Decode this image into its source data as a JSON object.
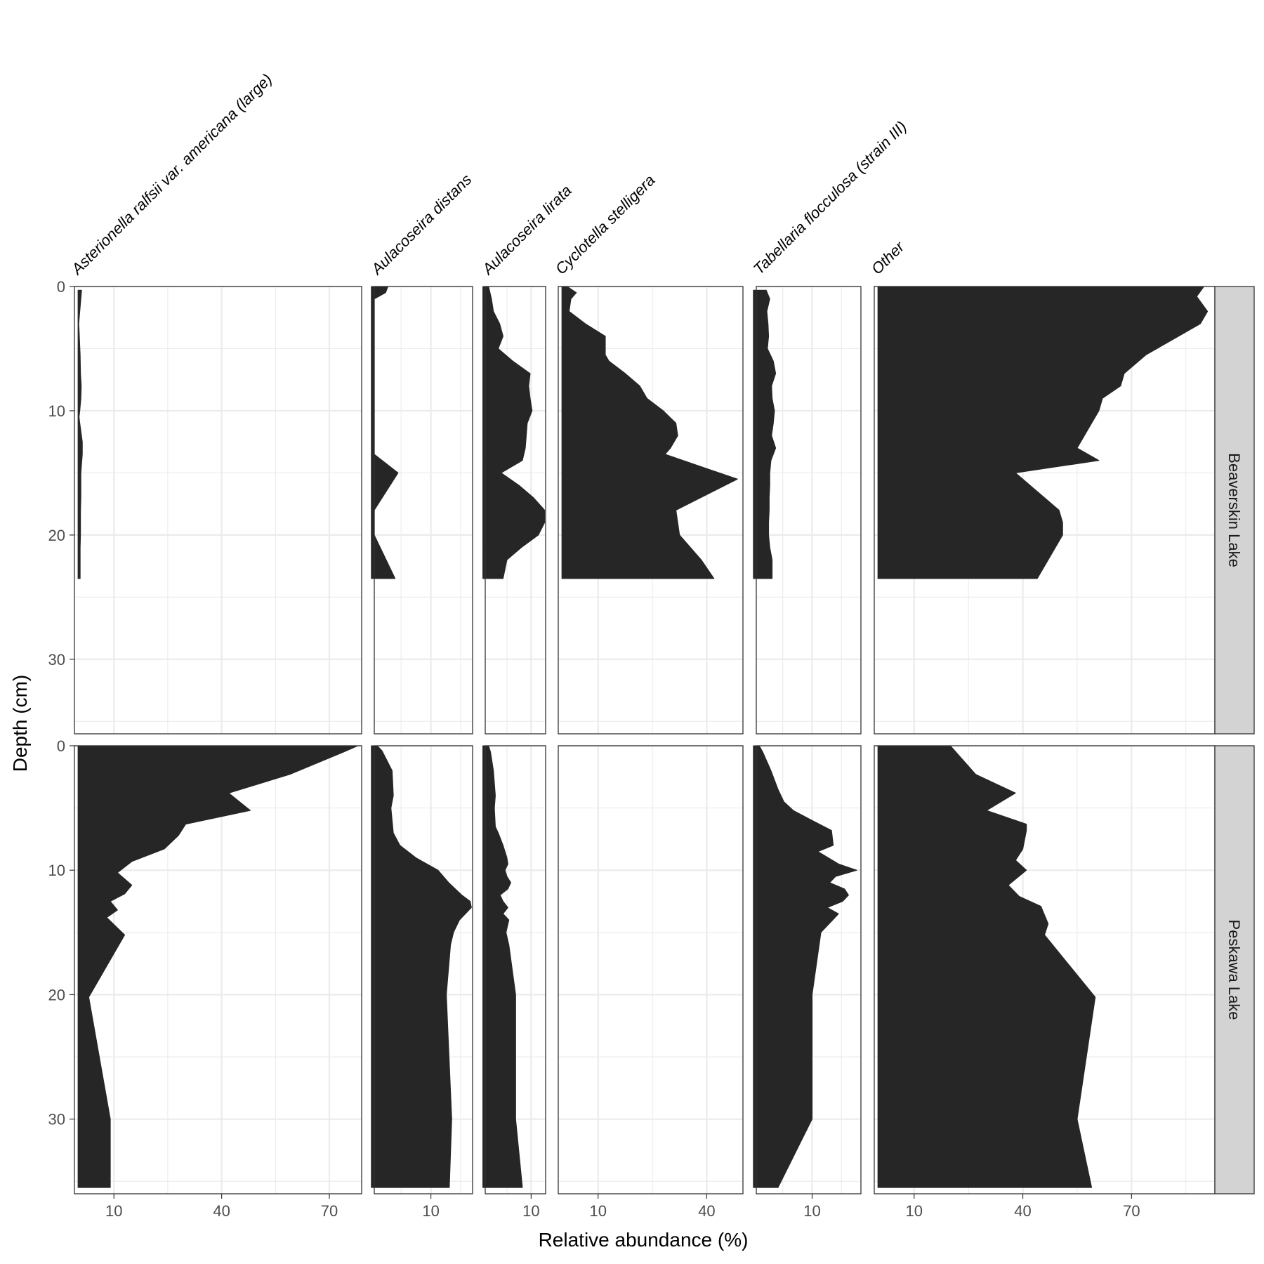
{
  "chart_data": {
    "type": "area",
    "xlabel": "Relative abundance (%)",
    "ylabel": "Depth (cm)",
    "y_reversed": true,
    "ylim": [
      0,
      36
    ],
    "y_ticks": [
      0,
      10,
      20,
      30
    ],
    "grid": true,
    "fill_color": "#262626",
    "strip_fill": "#d3d3d3",
    "taxa": [
      {
        "name": "Asterionella ralfsii var. americana (large)",
        "xlim": [
          -1,
          79
        ],
        "ticks": [
          10,
          40,
          70
        ]
      },
      {
        "name": "Aulacoseira distans",
        "xlim": [
          0.5,
          17
        ],
        "ticks": [
          10
        ]
      },
      {
        "name": "Aulacoseira lirata",
        "xlim": [
          0.5,
          13
        ],
        "ticks": [
          10
        ]
      },
      {
        "name": "Cyclotella stelligera",
        "xlim": [
          -1,
          50
        ],
        "ticks": [
          10,
          40
        ]
      },
      {
        "name": "Tabellaria flocculosa (strain III)",
        "xlim": [
          0.5,
          18.3
        ],
        "ticks": [
          10
        ]
      },
      {
        "name": "Other",
        "xlim": [
          -1,
          93
        ],
        "ticks": [
          10,
          40,
          70
        ]
      }
    ],
    "lakes": [
      {
        "name": "Beaverskin Lake",
        "series": [
          {
            "taxon": "Asterionella ralfsii var. americana (large)",
            "depth": [
              0.3,
              3,
              3.5,
              5.5,
              7,
              8,
              9,
              10,
              10.5,
              11,
              12.5,
              13.5,
              15,
              17,
              18,
              20,
              21,
              23.5
            ],
            "values": [
              1.0,
              0.2,
              0.3,
              0.6,
              0.7,
              0.9,
              0.8,
              0.5,
              0.3,
              0.5,
              1.2,
              1.2,
              0.8,
              0.8,
              0.7,
              0.7,
              0.6,
              0.6
            ]
          },
          {
            "taxon": "Aulacoseira distans",
            "depth": [
              0,
              0.5,
              1,
              13.5,
              15,
              18,
              20,
              23.5
            ],
            "values": [
              2.8,
              2.4,
              0.5,
              0.5,
              4.5,
              0.5,
              0.5,
              4.0
            ]
          },
          {
            "taxon": "Aulacoseira lirata",
            "depth": [
              0,
              1,
              2,
              3,
              4,
              5,
              6,
              7,
              8,
              9,
              10,
              11,
              12,
              13,
              14,
              15,
              16,
              17,
              18,
              19,
              20,
              21,
              22,
              23.5
            ],
            "values": [
              1.2,
              1.8,
              2.2,
              3.5,
              4.2,
              3.2,
              6.2,
              9.8,
              9.5,
              9.8,
              10.2,
              9.2,
              9.0,
              8.8,
              8.2,
              3.8,
              7.5,
              10.5,
              12.8,
              12.8,
              11.5,
              8.0,
              5.0,
              4.2
            ]
          },
          {
            "taxon": "Cyclotella stelligera",
            "depth": [
              0,
              0.5,
              1,
              2,
              3,
              4,
              5,
              5.5,
              6,
              7,
              8,
              9,
              10,
              11,
              12,
              13,
              13.5,
              15.5,
              18,
              20,
              22,
              23.5
            ],
            "values": [
              1.5,
              4.0,
              2.5,
              2.0,
              6.5,
              12.0,
              12.0,
              12.0,
              13.0,
              17.5,
              21.5,
              23.5,
              28.0,
              31.5,
              32.0,
              30.0,
              28.5,
              48.5,
              31.5,
              32.5,
              38.5,
              42.0
            ]
          },
          {
            "taxon": "Tabellaria flocculosa (strain III)",
            "depth": [
              0.3,
              1,
              2,
              3,
              4,
              5,
              6,
              7,
              8,
              9,
              10,
              11,
              12,
              13,
              14,
              15,
              16,
              17,
              18,
              19,
              20,
              21,
              22,
              23.5
            ],
            "values": [
              2.2,
              2.8,
              2.3,
              2.5,
              2.6,
              2.4,
              3.4,
              3.8,
              3.1,
              3.2,
              3.6,
              3.4,
              3.1,
              3.8,
              3.0,
              2.8,
              2.8,
              2.7,
              2.7,
              2.6,
              2.6,
              2.8,
              3.2,
              3.2
            ]
          },
          {
            "taxon": "Other",
            "depth": [
              0,
              0.8,
              2,
              3,
              4,
              5.5,
              7,
              8,
              9,
              10,
              11,
              12,
              13,
              14,
              15,
              16,
              17,
              18,
              19,
              20,
              21,
              23.5
            ],
            "values": [
              90,
              88,
              91,
              89,
              83,
              74,
              68,
              67,
              62,
              61,
              59,
              57,
              55,
              61,
              38,
              42,
              46,
              50,
              51,
              51,
              49,
              44
            ]
          }
        ]
      },
      {
        "name": "Peskawa Lake",
        "series": [
          {
            "taxon": "Asterionella ralfsii var. americana (large)",
            "depth": [
              0,
              0.5,
              2.3,
              3.8,
              5.2,
              6.3,
              7.2,
              8.3,
              9.3,
              10.2,
              11.2,
              11.9,
              12.5,
              13.2,
              13.8,
              15.2,
              20.2,
              30,
              35.5
            ],
            "values": [
              78,
              74,
              59,
              42,
              48,
              30,
              28,
              24,
              15,
              11,
              15,
              13,
              9,
              11,
              8,
              13,
              3,
              9,
              9
            ]
          },
          {
            "taxon": "Aulacoseira distans",
            "depth": [
              0,
              0.4,
              2,
              4,
              5,
              7,
              8,
              9,
              10,
              11,
              12,
              12.5,
              13,
              14,
              15,
              16,
              20,
              30,
              35.5
            ],
            "values": [
              1.0,
              1.8,
              3.5,
              3.7,
              3.3,
              3.7,
              4.8,
              7.5,
              11.2,
              13.0,
              15.2,
              16.6,
              16.8,
              14.8,
              13.8,
              13.3,
              12.6,
              13.5,
              13.1
            ]
          },
          {
            "taxon": "Aulacoseira lirata",
            "depth": [
              0,
              0.5,
              2,
              4,
              5,
              6.5,
              7,
              8,
              9,
              9.5,
              10,
              10.5,
              11,
              11.5,
              12,
              12.5,
              13,
              13.5,
              14,
              15,
              16,
              20,
              30,
              35.5
            ],
            "values": [
              1.2,
              1.6,
              2.2,
              2.6,
              2.4,
              2.6,
              3.2,
              4.2,
              5.0,
              5.2,
              4.6,
              5.0,
              5.8,
              5.2,
              3.6,
              4.2,
              5.2,
              4.2,
              5.4,
              4.8,
              5.4,
              6.8,
              6.8,
              8.2
            ]
          },
          {
            "taxon": "Tabellaria flocculosa (strain III)",
            "depth": [
              0,
              0.5,
              2,
              3.5,
              4.5,
              5.2,
              6,
              6.8,
              8,
              8.5,
              9.5,
              10,
              10.5,
              11,
              11.5,
              12,
              12.5,
              13,
              13.5,
              14,
              15,
              20,
              30,
              35.5
            ],
            "values": [
              1.0,
              1.6,
              3.0,
              4.2,
              5.2,
              6.8,
              10.0,
              13.3,
              13.6,
              11.0,
              14.5,
              17.6,
              14.0,
              13.0,
              15.5,
              16.2,
              15.2,
              12.6,
              14.5,
              13.5,
              11.5,
              10.0,
              10.0,
              4.2
            ]
          },
          {
            "taxon": "Other",
            "depth": [
              0,
              2.3,
              3.8,
              5.2,
              6.3,
              6.8,
              8.3,
              9.2,
              10,
              11.2,
              12.1,
              12.9,
              14.3,
              15.2,
              20.2,
              30,
              35.5
            ],
            "values": [
              20,
              27,
              38,
              30,
              41,
              41,
              40,
              38,
              41,
              36,
              39,
              45,
              47,
              46,
              60,
              55,
              59
            ]
          }
        ]
      }
    ]
  }
}
